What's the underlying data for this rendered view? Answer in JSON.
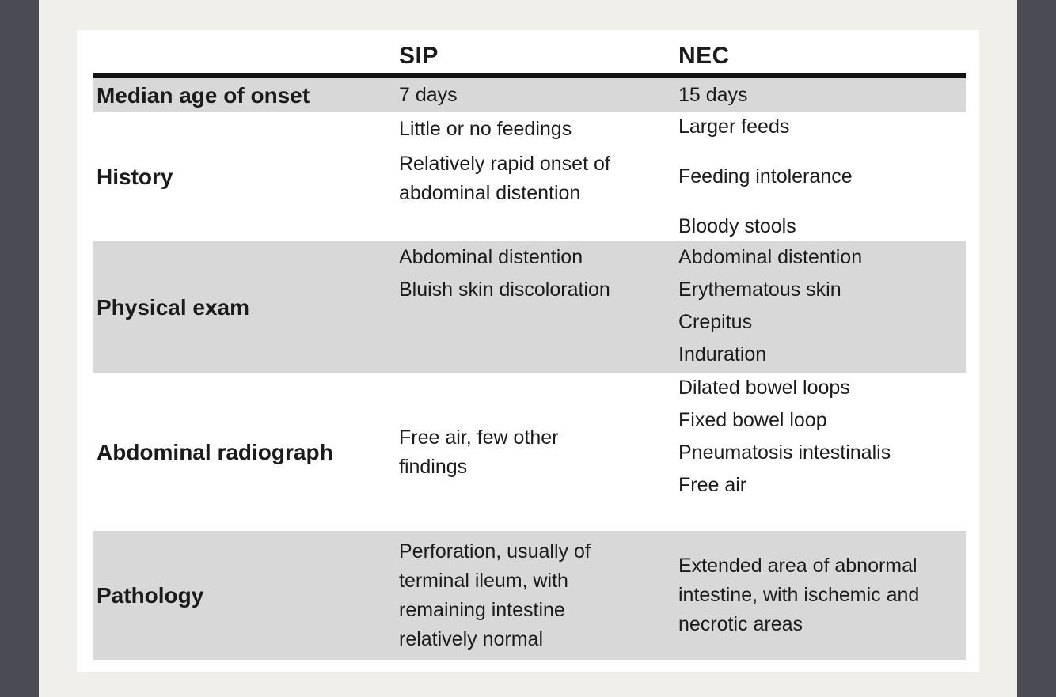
{
  "colors": {
    "edge_bar": "#4a4b54",
    "page_background": "#f0efec",
    "panel_background": "#ffffff",
    "row_stripe": "#d8d8d8",
    "header_rule": "#121212",
    "text": "#1b1b1b"
  },
  "table": {
    "columns": [
      "",
      "SIP",
      "NEC"
    ],
    "rows": [
      {
        "label": "Median age of onset",
        "sip": [
          "7 days"
        ],
        "nec": [
          "15 days"
        ]
      },
      {
        "label": "History",
        "sip": [
          "Little or no feedings",
          "Relatively rapid onset of\nabdominal distention"
        ],
        "nec": [
          "Larger feeds",
          "Feeding intolerance",
          "Bloody stools"
        ]
      },
      {
        "label": "Physical exam",
        "sip": [
          "Abdominal distention",
          "Bluish skin discoloration"
        ],
        "nec": [
          "Abdominal distention",
          "Erythematous skin",
          "Crepitus",
          "Induration"
        ]
      },
      {
        "label": "Abdominal radiograph",
        "sip": [
          "Free air, few other\nfindings"
        ],
        "nec": [
          "Dilated bowel loops",
          "Fixed bowel loop",
          "Pneumatosis intestinalis",
          "Free air"
        ]
      },
      {
        "label": "Pathology",
        "sip": [
          "Perforation, usually of\nterminal ileum, with\nremaining intestine\nrelatively normal"
        ],
        "nec": [
          "Extended area of abnormal\nintestine, with ischemic and\nnecrotic areas"
        ]
      }
    ]
  }
}
